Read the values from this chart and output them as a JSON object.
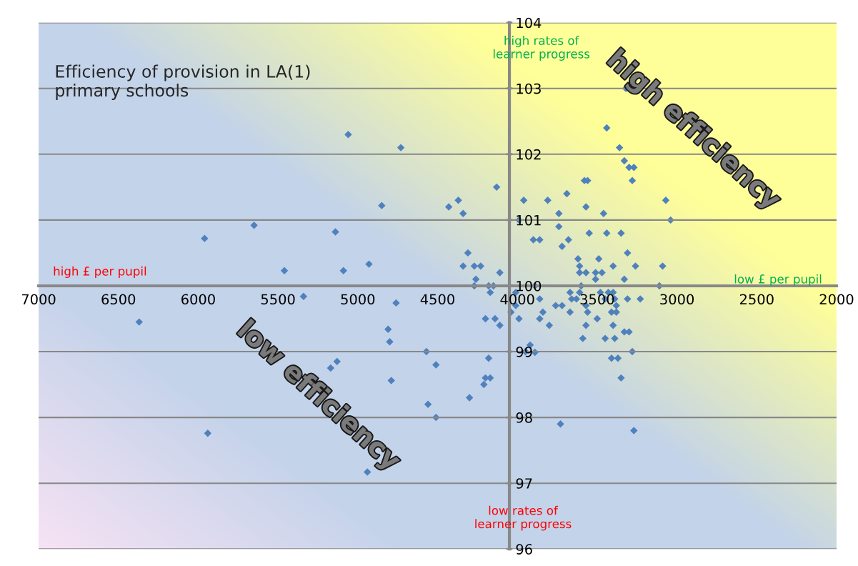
{
  "chart_data": {
    "type": "scatter",
    "title": "Efficiency of provision in LA(1)\nprimary schools",
    "annotations": [
      "high rates of\nlearner progress",
      "low rates of\nlearner progress",
      "high £ per pupil",
      "low £ per pupil",
      "high efficiency",
      "low efficiency"
    ],
    "x": [
      5060,
      4730,
      4850,
      5650,
      5140,
      5960,
      5460,
      5090,
      4930,
      5340,
      4760,
      6370,
      4810,
      4800,
      5130,
      5170,
      4790,
      5940,
      4940,
      4130,
      4430,
      4370,
      4340,
      3960,
      3810,
      3990,
      3900,
      3860,
      4310,
      4340,
      4270,
      4230,
      4110,
      4260,
      4270,
      4180,
      4150,
      4170,
      4010,
      3890,
      3860,
      4010,
      4040,
      3840,
      4200,
      4140,
      4110,
      3990,
      3860,
      3800,
      4570,
      4510,
      4180,
      4200,
      4170,
      4210,
      4300,
      4560,
      4510,
      3950,
      3920,
      3890,
      3320,
      3440,
      3360,
      3330,
      3300,
      3270,
      3280,
      3580,
      3560,
      3690,
      3570,
      3740,
      3460,
      3070,
      3040,
      3740,
      3550,
      3440,
      3350,
      3680,
      3720,
      3310,
      3620,
      3490,
      3610,
      3400,
      3260,
      3090,
      3610,
      3570,
      3510,
      3470,
      3510,
      3330,
      3600,
      3110,
      3670,
      3610,
      3480,
      3430,
      3400,
      3660,
      3630,
      3450,
      3390,
      3310,
      3230,
      3760,
      3720,
      3570,
      3380,
      3670,
      3560,
      3410,
      3380,
      3500,
      3570,
      3400,
      3330,
      3300,
      3590,
      3450,
      3390,
      3280,
      3410,
      3370,
      3350,
      3730,
      3270
    ],
    "values": [
      102.3,
      102.1,
      101.22,
      100.92,
      100.82,
      100.72,
      100.23,
      100.23,
      100.33,
      99.84,
      99.74,
      99.45,
      99.34,
      99.15,
      98.85,
      98.75,
      98.56,
      97.76,
      97.17,
      101.5,
      101.2,
      101.3,
      101.1,
      101.3,
      101.3,
      101.0,
      100.7,
      100.7,
      100.5,
      100.3,
      100.3,
      100.3,
      100.2,
      100.1,
      100.0,
      100.0,
      100.0,
      99.9,
      99.9,
      100.0,
      99.8,
      99.7,
      99.6,
      99.6,
      99.5,
      99.5,
      99.4,
      99.5,
      99.5,
      99.4,
      99.0,
      98.8,
      98.9,
      98.6,
      98.6,
      98.5,
      98.3,
      98.2,
      98.0,
      99.0,
      99.1,
      98.99,
      103.0,
      102.4,
      102.1,
      101.9,
      101.8,
      101.8,
      101.6,
      101.6,
      101.6,
      101.4,
      101.2,
      101.1,
      101.1,
      101.3,
      101.0,
      100.9,
      100.8,
      100.8,
      100.8,
      100.7,
      100.6,
      100.5,
      100.41,
      100.41,
      100.3,
      100.3,
      100.3,
      100.3,
      100.2,
      100.2,
      100.2,
      100.2,
      100.1,
      100.1,
      100.0,
      100.0,
      99.9,
      99.9,
      99.9,
      99.9,
      99.9,
      99.8,
      99.8,
      99.8,
      99.8,
      99.8,
      99.8,
      99.7,
      99.7,
      99.7,
      99.7,
      99.6,
      99.6,
      99.6,
      99.6,
      99.5,
      99.4,
      99.4,
      99.3,
      99.3,
      99.2,
      99.2,
      99.2,
      99.0,
      98.9,
      98.9,
      98.6,
      97.9,
      97.8
    ],
    "color": "#4f81bd",
    "marker": "diamond",
    "xlim": [
      7000,
      2000
    ],
    "xticks": [
      7000,
      6500,
      6000,
      5500,
      5000,
      4500,
      4000,
      3500,
      3000,
      2500,
      2000
    ],
    "ylim": [
      96,
      104
    ],
    "yticks": [
      96,
      97,
      98,
      99,
      100,
      101,
      102,
      103,
      104
    ],
    "grid": "y",
    "legend": false
  }
}
